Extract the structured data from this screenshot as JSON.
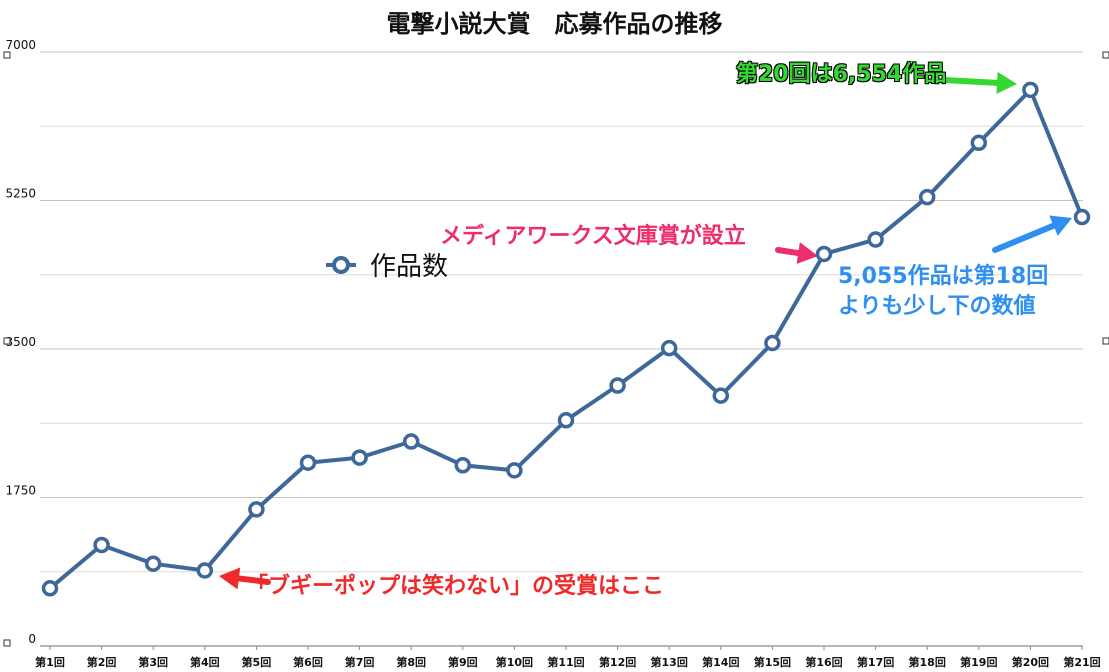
{
  "chart_data": {
    "type": "line",
    "title": "電撃小説大賞　応募作品の推移",
    "categories": [
      "第1回",
      "第2回",
      "第3回",
      "第4回",
      "第5回",
      "第6回",
      "第7回",
      "第8回",
      "第9回",
      "第10回",
      "第11回",
      "第12回",
      "第13回",
      "第14回",
      "第15回",
      "第16回",
      "第17回",
      "第18回",
      "第19回",
      "第20回",
      "第21回"
    ],
    "series": [
      {
        "name": "作品数",
        "color": "#3e6899",
        "values": [
          680,
          1190,
          970,
          890,
          1610,
          2160,
          2220,
          2410,
          2130,
          2070,
          2660,
          3070,
          3510,
          2950,
          3570,
          4620,
          4790,
          5290,
          5930,
          6554,
          5055
        ]
      }
    ],
    "ylim": [
      0,
      7000
    ],
    "yticks": [
      0,
      1750,
      3500,
      5250,
      7000
    ],
    "grid": true,
    "legend_position": "center-left",
    "annotations": [
      {
        "id": "boogiepop",
        "text": "「ブギーポップは笑わない」の受賞はここ",
        "color": "#ee2a2a",
        "target_index": 3
      },
      {
        "id": "mediaworks",
        "text": "メディアワークス文庫賞が設立",
        "color": "#ee2d6b",
        "target_index": 15
      },
      {
        "id": "peak",
        "text": "第20回は6,554作品",
        "color": "#33d930",
        "target_index": 19
      },
      {
        "id": "latest_line1",
        "text": "5,055作品は第18回",
        "color": "#2f8ff0",
        "target_index": 20
      },
      {
        "id": "latest_line2",
        "text": "よりも少し下の数値",
        "color": "#2f8ff0",
        "target_index": 20
      }
    ]
  }
}
